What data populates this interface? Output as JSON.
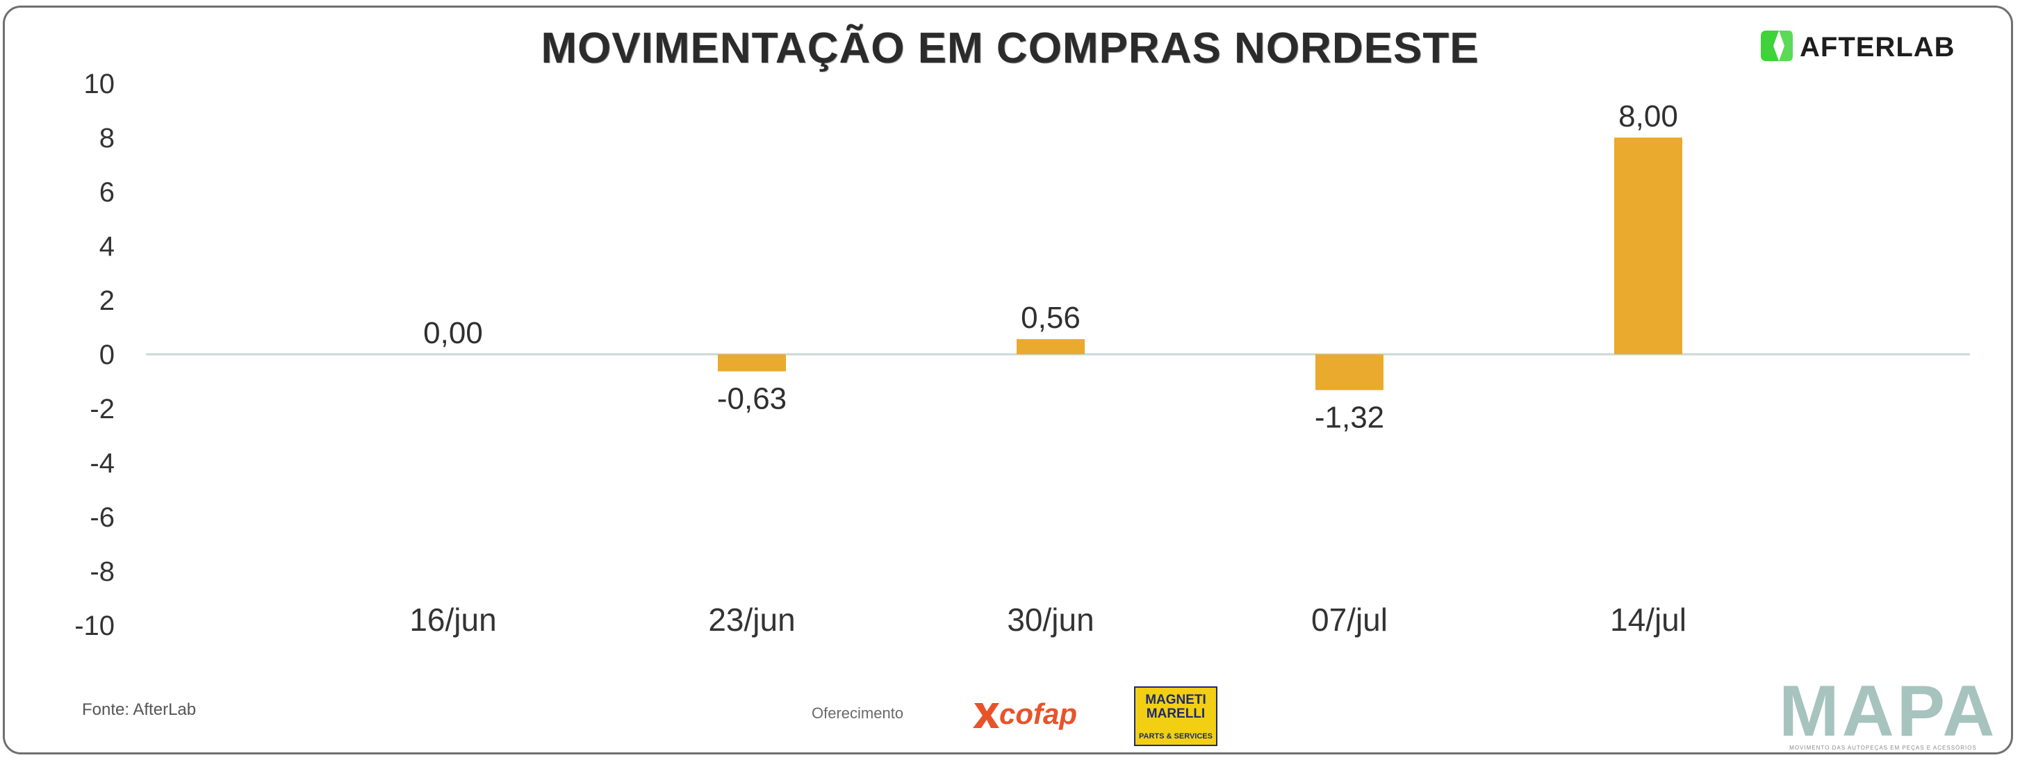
{
  "chart_data": {
    "type": "bar",
    "title": "MOVIMENTAÇÃO EM COMPRAS NORDESTE",
    "categories": [
      "16/jun",
      "23/jun",
      "30/jun",
      "07/jul",
      "14/jul"
    ],
    "values": [
      0.0,
      -0.63,
      0.56,
      -1.32,
      8.0
    ],
    "data_labels": [
      "0,00",
      "-0,63",
      "0,56",
      "-1,32",
      "8,00"
    ],
    "yticks": [
      "-10",
      "-8",
      "-6",
      "-4",
      "-2",
      "0",
      "2",
      "4",
      "6",
      "8",
      "10"
    ],
    "ylim": [
      -10,
      10
    ],
    "xlabel": "",
    "ylabel": "",
    "grid": false,
    "legend": "none",
    "bar_color": "#eaaa2d",
    "baseline_color": "#c9d9d6"
  },
  "branding": {
    "afterlab": "AFTERLAB",
    "source": "Fonte: AfterLab",
    "sponsor_label": "Oferecimento",
    "cofap": "cofap",
    "magneti_line1": "MAGNETI",
    "magneti_line2": "MARELLI",
    "magneti_tag": "PARTS & SERVICES",
    "mapa": "MAPA",
    "mapa_sub": "MOVIMENTO DAS AUTOPEÇAS EM PEÇAS E ACESSÓRIOS",
    "afterlab_color": "#3fd23a",
    "cofap_color": "#e8532a",
    "mapa_color": "#a7c3be"
  }
}
